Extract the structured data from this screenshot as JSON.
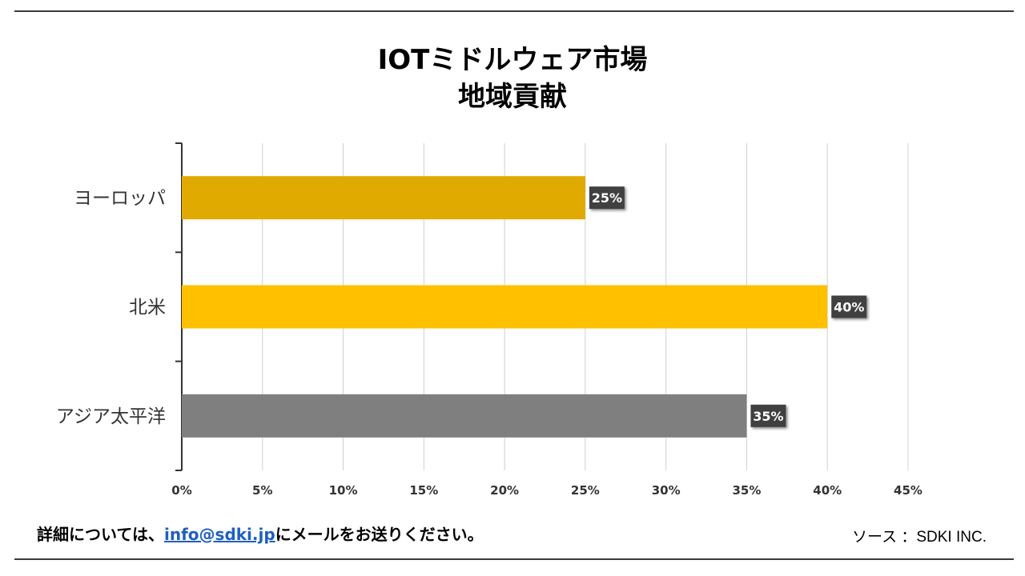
{
  "chart_data": {
    "type": "bar",
    "orientation": "horizontal",
    "title": "IOTミドルウェア市場",
    "subtitle": "地域貢献",
    "categories": [
      "ヨーロッパ",
      "北米",
      "アジア太平洋"
    ],
    "values": [
      25,
      40,
      35
    ],
    "data_labels": [
      "25%",
      "40%",
      "35%"
    ],
    "colors": [
      "#e0aa00",
      "#ffc000",
      "#7f7f7f"
    ],
    "xlim": [
      0,
      45
    ],
    "x_ticks": [
      0,
      5,
      10,
      15,
      20,
      25,
      30,
      35,
      40,
      45
    ],
    "x_tick_labels": [
      "0%",
      "5%",
      "10%",
      "15%",
      "20%",
      "25%",
      "30%",
      "35%",
      "40%",
      "45%"
    ],
    "grid": true,
    "legend": "none"
  },
  "footer": {
    "prefix": "詳細については、",
    "email": "info@sdki.jp",
    "suffix": "にメールをお送りください。",
    "source": "ソース ：SDKI INC."
  }
}
